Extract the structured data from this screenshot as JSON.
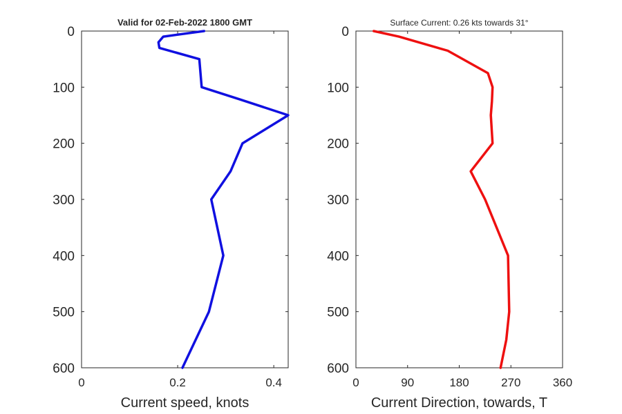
{
  "chart_data": [
    {
      "type": "line",
      "title": "Valid for 02-Feb-2022 1800 GMT",
      "xlabel": "Current speed, knots",
      "ylabel": "",
      "xlim": [
        0,
        0.43
      ],
      "ylim": [
        0,
        600
      ],
      "y_reversed": true,
      "xticks": [
        0,
        0.2,
        0.4
      ],
      "xtick_labels": [
        "0",
        "0.2",
        "0.4"
      ],
      "yticks": [
        0,
        100,
        200,
        300,
        400,
        500,
        600
      ],
      "ytick_labels": [
        "0",
        "100",
        "200",
        "300",
        "400",
        "500",
        "600"
      ],
      "grid": false,
      "color": "#1010e0",
      "series": [
        {
          "x": [
            0.255,
            0.17,
            0.16,
            0.162,
            0.245,
            0.25,
            0.33,
            0.43,
            0.335,
            0.31,
            0.27,
            0.295,
            0.265,
            0.21
          ],
          "y": [
            0,
            10,
            20,
            30,
            50,
            100,
            122,
            150,
            200,
            250,
            300,
            400,
            500,
            600
          ]
        }
      ]
    },
    {
      "type": "line",
      "title": "Surface Current: 0.26 kts towards 31°",
      "xlabel": "Current Direction, towards, T",
      "ylabel": "",
      "xlim": [
        0,
        360
      ],
      "ylim": [
        0,
        600
      ],
      "y_reversed": true,
      "xticks": [
        0,
        90,
        180,
        270,
        360
      ],
      "xtick_labels": [
        "0",
        "90",
        "180",
        "270",
        "360"
      ],
      "yticks": [
        0,
        100,
        200,
        300,
        400,
        500,
        600
      ],
      "ytick_labels": [
        "0",
        "100",
        "200",
        "300",
        "400",
        "500",
        "600"
      ],
      "grid": false,
      "color": "#ee1010",
      "series": [
        {
          "x": [
            31,
            75,
            160,
            230,
            238,
            237,
            235,
            238,
            200,
            225,
            265,
            267,
            262,
            252
          ],
          "y": [
            0,
            10,
            35,
            75,
            100,
            125,
            150,
            200,
            250,
            300,
            400,
            500,
            550,
            600
          ]
        }
      ]
    }
  ]
}
